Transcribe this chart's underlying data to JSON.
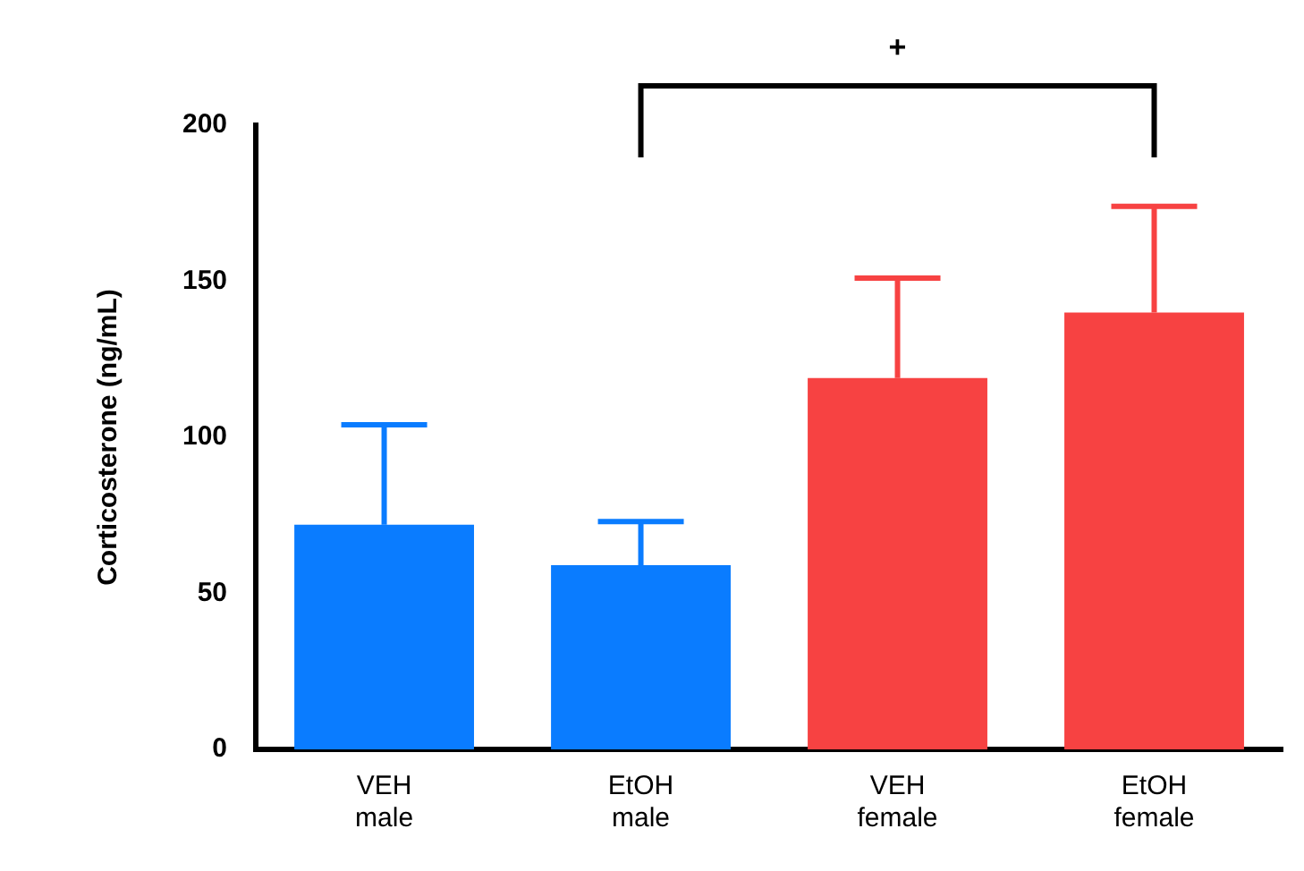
{
  "chart_data": {
    "type": "bar",
    "ylabel": "Corticosterone (ng/mL)",
    "categories": [
      "VEH\nmale",
      "EtOH\nmale",
      "VEH\nfemale",
      "EtOH\nfemale"
    ],
    "values": [
      72,
      59,
      119,
      140
    ],
    "colors": [
      "#0a7cff",
      "#0a7cff",
      "#f74242",
      "#f74242"
    ],
    "errors": [
      [
        72,
        104
      ],
      [
        59,
        73
      ],
      [
        119,
        151
      ],
      [
        140,
        174
      ]
    ],
    "ylim": [
      0,
      200
    ],
    "yticks": [
      0,
      50,
      100,
      150,
      200
    ],
    "grid": false,
    "legend": false,
    "annotations": [
      "+"
    ]
  }
}
